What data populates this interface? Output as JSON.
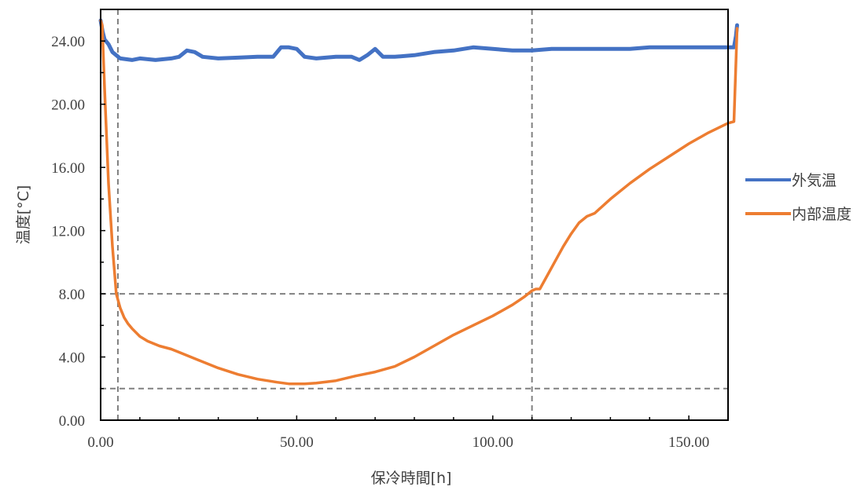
{
  "chart_data": {
    "type": "line",
    "title": "",
    "xlabel": "保冷時間[h]",
    "ylabel": "温度[°C]",
    "xlim": [
      0,
      160
    ],
    "ylim": [
      0,
      26
    ],
    "x_ticks": [
      0,
      50,
      100,
      150
    ],
    "x_tick_labels": [
      "0.00",
      "50.00",
      "100.00",
      "150.00"
    ],
    "y_ticks": [
      0,
      4,
      8,
      12,
      16,
      20,
      24
    ],
    "y_tick_labels": [
      "0.00",
      "4.00",
      "8.00",
      "12.00",
      "16.00",
      "20.00",
      "24.00"
    ],
    "grid": false,
    "legend_position": "right",
    "series": [
      {
        "name": "外気温",
        "color": "#4472C4",
        "x": [
          0,
          0.5,
          1,
          2,
          3,
          5,
          8,
          10,
          14,
          18,
          20,
          22,
          24,
          26,
          30,
          35,
          40,
          44,
          46,
          48,
          50,
          52,
          55,
          60,
          64,
          66,
          68,
          70,
          72,
          75,
          80,
          85,
          90,
          95,
          100,
          105,
          110,
          115,
          120,
          125,
          130,
          135,
          140,
          145,
          150,
          155,
          160,
          161.5,
          162,
          162.3
        ],
        "y": [
          25.3,
          24.6,
          24.1,
          23.8,
          23.3,
          22.9,
          22.8,
          22.9,
          22.8,
          22.9,
          23.0,
          23.4,
          23.3,
          23.0,
          22.9,
          22.95,
          23.0,
          23.0,
          23.6,
          23.6,
          23.5,
          23.0,
          22.9,
          23.0,
          23.0,
          22.8,
          23.1,
          23.5,
          23.0,
          23.0,
          23.1,
          23.3,
          23.4,
          23.6,
          23.5,
          23.4,
          23.4,
          23.5,
          23.5,
          23.5,
          23.5,
          23.5,
          23.6,
          23.6,
          23.6,
          23.6,
          23.6,
          23.6,
          24.3,
          25.0
        ]
      },
      {
        "name": "内部温度",
        "color": "#ED7D31",
        "x": [
          0,
          0.4,
          1,
          2,
          3,
          4,
          5,
          6,
          7,
          8,
          10,
          12,
          15,
          18,
          20,
          25,
          30,
          35,
          40,
          45,
          48,
          50,
          52,
          55,
          60,
          65,
          70,
          75,
          80,
          85,
          90,
          95,
          100,
          105,
          108,
          110,
          111,
          112,
          114,
          116,
          118,
          120,
          122,
          124,
          126,
          130,
          135,
          140,
          145,
          150,
          155,
          160,
          161.5,
          162.3
        ],
        "y": [
          25.3,
          25.0,
          21.0,
          15.0,
          11.0,
          8.0,
          7.1,
          6.5,
          6.1,
          5.8,
          5.3,
          5.0,
          4.7,
          4.5,
          4.3,
          3.8,
          3.3,
          2.9,
          2.6,
          2.4,
          2.3,
          2.3,
          2.3,
          2.35,
          2.5,
          2.8,
          3.05,
          3.4,
          4.0,
          4.7,
          5.4,
          6.0,
          6.6,
          7.3,
          7.8,
          8.2,
          8.3,
          8.3,
          9.2,
          10.1,
          11.0,
          11.8,
          12.5,
          12.9,
          13.1,
          14.0,
          15.0,
          15.9,
          16.7,
          17.5,
          18.2,
          18.8,
          18.9,
          24.8
        ]
      }
    ],
    "reference_lines": {
      "horizontal": [
        2,
        8
      ],
      "vertical": [
        4.4,
        110
      ],
      "style": "dashed",
      "color": "#808080"
    }
  }
}
